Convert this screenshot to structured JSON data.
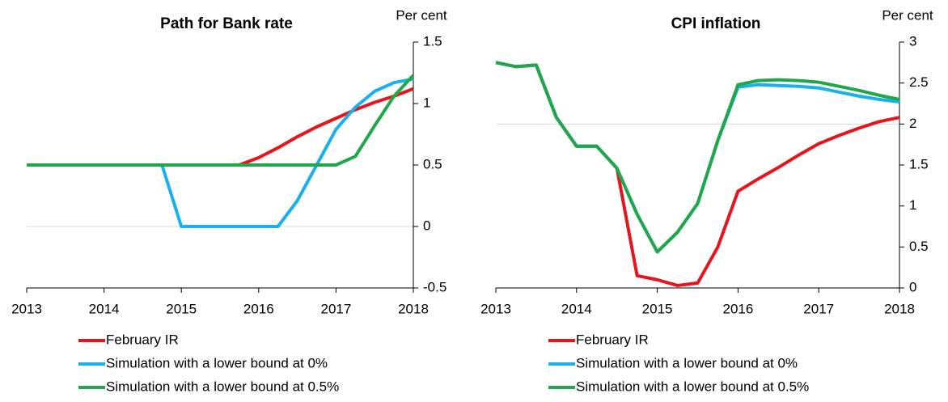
{
  "chart_data": [
    {
      "type": "line",
      "title": "Path for Bank rate",
      "y_label": "Per cent",
      "x": [
        2013,
        2013.25,
        2013.5,
        2013.75,
        2014,
        2014.25,
        2014.5,
        2014.75,
        2015,
        2015.25,
        2015.5,
        2015.75,
        2016,
        2016.25,
        2016.5,
        2016.75,
        2017,
        2017.25,
        2017.5,
        2017.75,
        2018
      ],
      "xlim": [
        2013,
        2018
      ],
      "xticks": [
        2013,
        2014,
        2015,
        2016,
        2017,
        2018
      ],
      "ylim": [
        -0.5,
        1.5
      ],
      "yticks": [
        -0.5,
        0,
        0.5,
        1,
        1.5
      ],
      "reference_line": 0,
      "series": [
        {
          "name": "February IR",
          "color": "#e8141b",
          "values": [
            0.5,
            0.5,
            0.5,
            0.5,
            0.5,
            0.5,
            0.5,
            0.5,
            0.5,
            0.5,
            0.5,
            0.5,
            0.56,
            0.64,
            0.73,
            0.81,
            0.88,
            0.95,
            1.01,
            1.06,
            1.12
          ]
        },
        {
          "name": "Simulation with a lower bound at 0%",
          "color": "#1ab0ee",
          "values": [
            0.5,
            0.5,
            0.5,
            0.5,
            0.5,
            0.5,
            0.5,
            0.5,
            0,
            0,
            0,
            0,
            0,
            0,
            0.21,
            0.5,
            0.79,
            0.97,
            1.1,
            1.17,
            1.2
          ]
        },
        {
          "name": "Simulation with a lower bound at 0.5%",
          "color": "#1fa84a",
          "values": [
            0.5,
            0.5,
            0.5,
            0.5,
            0.5,
            0.5,
            0.5,
            0.5,
            0.5,
            0.5,
            0.5,
            0.5,
            0.5,
            0.5,
            0.5,
            0.5,
            0.5,
            0.57,
            0.82,
            1.06,
            1.23
          ]
        }
      ]
    },
    {
      "type": "line",
      "title": "CPI inflation",
      "y_label": "Per cent",
      "x": [
        2013,
        2013.25,
        2013.5,
        2013.75,
        2014,
        2014.25,
        2014.5,
        2014.75,
        2015,
        2015.25,
        2015.5,
        2015.75,
        2016,
        2016.25,
        2016.5,
        2016.75,
        2017,
        2017.25,
        2017.5,
        2017.75,
        2018
      ],
      "xlim": [
        2013,
        2018
      ],
      "xticks": [
        2013,
        2014,
        2015,
        2016,
        2017,
        2018
      ],
      "ylim": [
        0,
        3
      ],
      "yticks": [
        0,
        0.5,
        1,
        1.5,
        2,
        2.5,
        3
      ],
      "reference_line": 2,
      "series": [
        {
          "name": "February IR",
          "color": "#e8141b",
          "values": [
            2.75,
            2.7,
            2.72,
            2.08,
            1.73,
            1.73,
            1.46,
            0.15,
            0.1,
            0.03,
            0.06,
            0.5,
            1.18,
            1.33,
            1.47,
            1.62,
            1.76,
            1.86,
            1.95,
            2.03,
            2.08
          ]
        },
        {
          "name": "Simulation with a lower bound at 0%",
          "color": "#1ab0ee",
          "values": [
            2.75,
            2.7,
            2.72,
            2.08,
            1.73,
            1.73,
            1.46,
            0.9,
            0.44,
            0.68,
            1.03,
            1.8,
            2.45,
            2.48,
            2.47,
            2.46,
            2.44,
            2.39,
            2.34,
            2.3,
            2.27
          ]
        },
        {
          "name": "Simulation with a lower bound at 0.5%",
          "color": "#1fa84a",
          "values": [
            2.75,
            2.7,
            2.72,
            2.08,
            1.73,
            1.73,
            1.46,
            0.9,
            0.44,
            0.68,
            1.03,
            1.8,
            2.48,
            2.53,
            2.54,
            2.53,
            2.51,
            2.46,
            2.41,
            2.35,
            2.3
          ]
        }
      ]
    }
  ]
}
